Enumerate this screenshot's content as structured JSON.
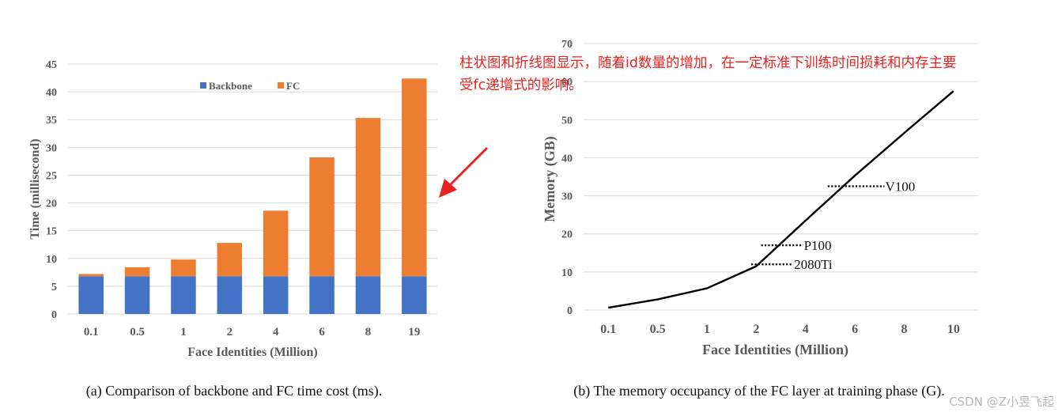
{
  "annotation": {
    "line1": "柱状图和折线图显示，随着id数量的增加，在一定标准下训练时间损耗和内存主要",
    "line2": "受fc递增式的影响。"
  },
  "watermark": "CSDN @Z小昱飞起",
  "colors": {
    "backbone": "#4472c4",
    "fc": "#ed7d31",
    "arrow": "#e8231f",
    "annotation": "#e8231f"
  },
  "chart_data": [
    {
      "type": "bar",
      "stacked": true,
      "caption": "(a) Comparison of backbone and FC time cost (ms).",
      "xlabel": "Face Identities (Million)",
      "ylabel": "Time (millisecond)",
      "ylim": [
        0,
        45
      ],
      "yticks": [
        0,
        5,
        10,
        15,
        20,
        25,
        30,
        35,
        40,
        45
      ],
      "categories": [
        "0.1",
        "0.5",
        "1",
        "2",
        "4",
        "6",
        "8",
        "19"
      ],
      "series": [
        {
          "name": "Backbone",
          "values": [
            6.8,
            6.8,
            6.8,
            6.8,
            6.8,
            6.8,
            6.8,
            6.8
          ]
        },
        {
          "name": "FC",
          "values": [
            0.4,
            1.6,
            3.0,
            6.0,
            11.8,
            21.4,
            28.5,
            35.6
          ]
        }
      ],
      "legend": "top",
      "grid": true
    },
    {
      "type": "line",
      "caption": "(b) The memory occupancy of the FC layer at training phase (G).",
      "xlabel": "Face Identities (Million)",
      "ylabel": "Memory (GB)",
      "ylim": [
        0,
        70
      ],
      "yticks": [
        0,
        10,
        20,
        30,
        40,
        50,
        60,
        70
      ],
      "categories": [
        "0.1",
        "0.5",
        "1",
        "2",
        "4",
        "6",
        "8",
        "10"
      ],
      "values": [
        0.6,
        2.8,
        5.7,
        11.5,
        23.5,
        35.3,
        46.5,
        57.5
      ],
      "grid": true,
      "reference_lines": [
        {
          "label": "V100",
          "value": 32.5,
          "from": 4.45,
          "to": 5.6
        },
        {
          "label": "P100",
          "value": 17.0,
          "from": 3.1,
          "to": 3.95
        },
        {
          "label": "2080Ti",
          "value": 12.0,
          "from": 2.9,
          "to": 3.75
        }
      ]
    }
  ]
}
